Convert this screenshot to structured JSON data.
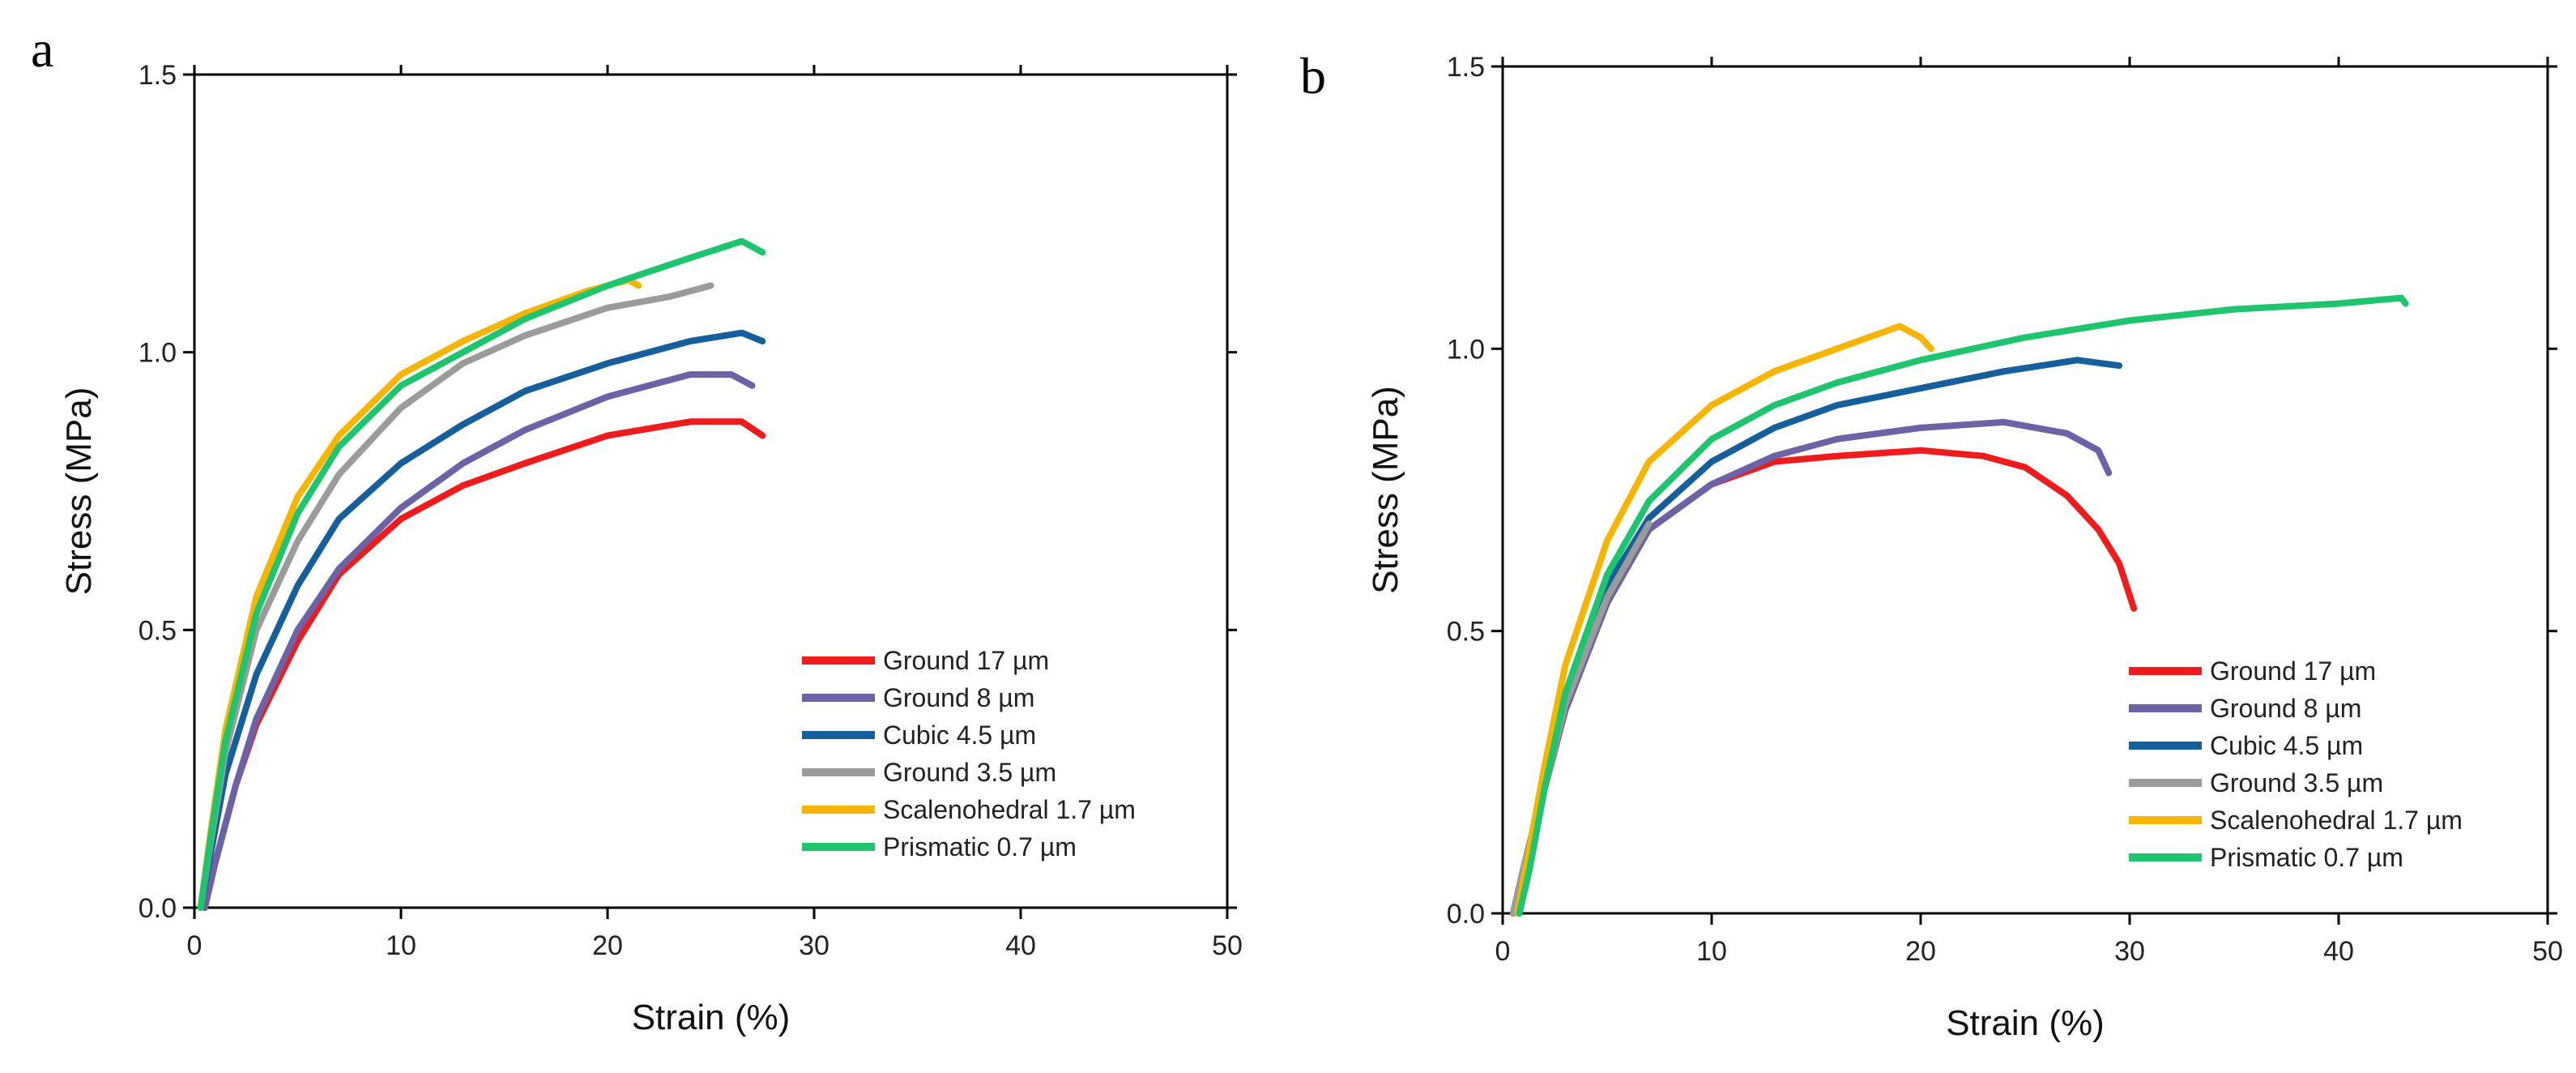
{
  "chart_data": [
    {
      "type": "line",
      "panel_label": "a",
      "xlabel": "Strain (%)",
      "ylabel": "Stress (MPa)",
      "xlim": [
        0,
        50
      ],
      "ylim": [
        0,
        1.5
      ],
      "x_ticks": [
        "0",
        "10",
        "20",
        "30",
        "40",
        "50"
      ],
      "y_ticks": [
        "0.0",
        "0.5",
        "1.0",
        "1.5"
      ],
      "legend_position": "bottom-right",
      "series": [
        {
          "name": "Ground 17 µm",
          "color": "#ee1c1c",
          "points": [
            [
              0.5,
              0
            ],
            [
              1,
              0.08
            ],
            [
              2,
              0.22
            ],
            [
              3,
              0.33
            ],
            [
              5,
              0.48
            ],
            [
              7,
              0.6
            ],
            [
              10,
              0.7
            ],
            [
              13,
              0.76
            ],
            [
              16,
              0.8
            ],
            [
              20,
              0.85
            ],
            [
              24,
              0.875
            ],
            [
              26.5,
              0.875
            ],
            [
              27.5,
              0.85
            ]
          ]
        },
        {
          "name": "Ground 8 µm",
          "color": "#6b63a6",
          "points": [
            [
              0.5,
              0
            ],
            [
              1,
              0.08
            ],
            [
              2,
              0.22
            ],
            [
              3,
              0.34
            ],
            [
              5,
              0.5
            ],
            [
              7,
              0.61
            ],
            [
              10,
              0.72
            ],
            [
              13,
              0.8
            ],
            [
              16,
              0.86
            ],
            [
              20,
              0.92
            ],
            [
              24,
              0.96
            ],
            [
              26,
              0.96
            ],
            [
              27,
              0.94
            ]
          ]
        },
        {
          "name": "Cubic 4.5 µm",
          "color": "#155f9c",
          "points": [
            [
              0.3,
              0
            ],
            [
              0.8,
              0.1
            ],
            [
              1.5,
              0.24
            ],
            [
              3,
              0.42
            ],
            [
              5,
              0.58
            ],
            [
              7,
              0.7
            ],
            [
              10,
              0.8
            ],
            [
              13,
              0.87
            ],
            [
              16,
              0.93
            ],
            [
              20,
              0.98
            ],
            [
              24,
              1.02
            ],
            [
              26.5,
              1.035
            ],
            [
              27.5,
              1.02
            ]
          ]
        },
        {
          "name": "Ground 3.5 µm",
          "color": "#9b9b9b",
          "points": [
            [
              0.3,
              0
            ],
            [
              0.8,
              0.12
            ],
            [
              1.5,
              0.28
            ],
            [
              3,
              0.5
            ],
            [
              5,
              0.66
            ],
            [
              7,
              0.78
            ],
            [
              10,
              0.9
            ],
            [
              13,
              0.98
            ],
            [
              16,
              1.03
            ],
            [
              20,
              1.08
            ],
            [
              23,
              1.1
            ],
            [
              25,
              1.12
            ]
          ]
        },
        {
          "name": "Scalenohedral 1.7 µm",
          "color": "#f7b500",
          "points": [
            [
              0.3,
              0
            ],
            [
              0.8,
              0.14
            ],
            [
              1.5,
              0.32
            ],
            [
              3,
              0.56
            ],
            [
              5,
              0.74
            ],
            [
              7,
              0.85
            ],
            [
              10,
              0.96
            ],
            [
              13,
              1.02
            ],
            [
              16,
              1.07
            ],
            [
              19,
              1.11
            ],
            [
              21,
              1.13
            ],
            [
              21.5,
              1.12
            ]
          ]
        },
        {
          "name": "Prismatic 0.7 µm",
          "color": "#1fc46e",
          "points": [
            [
              0.3,
              0
            ],
            [
              0.8,
              0.13
            ],
            [
              1.5,
              0.3
            ],
            [
              3,
              0.53
            ],
            [
              5,
              0.71
            ],
            [
              7,
              0.83
            ],
            [
              10,
              0.94
            ],
            [
              13,
              1.0
            ],
            [
              16,
              1.06
            ],
            [
              20,
              1.12
            ],
            [
              24,
              1.17
            ],
            [
              26.5,
              1.2
            ],
            [
              27.5,
              1.18
            ]
          ]
        }
      ]
    },
    {
      "type": "line",
      "panel_label": "b",
      "xlabel": "Strain (%)",
      "ylabel": "Stress (MPa)",
      "xlim": [
        0,
        50
      ],
      "ylim": [
        0,
        1.5
      ],
      "x_ticks": [
        "0",
        "10",
        "20",
        "30",
        "40",
        "50"
      ],
      "y_ticks": [
        "0.0",
        "0.5",
        "1.0",
        "1.5"
      ],
      "legend_position": "bottom-right",
      "series": [
        {
          "name": "Ground 17 µm",
          "color": "#ee1c1c",
          "points": [
            [
              0.5,
              0
            ],
            [
              1,
              0.08
            ],
            [
              2,
              0.22
            ],
            [
              3,
              0.36
            ],
            [
              5,
              0.55
            ],
            [
              7,
              0.68
            ],
            [
              10,
              0.76
            ],
            [
              13,
              0.8
            ],
            [
              16,
              0.81
            ],
            [
              20,
              0.82
            ],
            [
              23,
              0.81
            ],
            [
              25,
              0.79
            ],
            [
              27,
              0.74
            ],
            [
              28.5,
              0.68
            ],
            [
              29.5,
              0.62
            ],
            [
              30.2,
              0.54
            ]
          ]
        },
        {
          "name": "Ground 8 µm",
          "color": "#6b63a6",
          "points": [
            [
              0.5,
              0
            ],
            [
              1,
              0.08
            ],
            [
              2,
              0.22
            ],
            [
              3,
              0.36
            ],
            [
              5,
              0.55
            ],
            [
              7,
              0.68
            ],
            [
              10,
              0.76
            ],
            [
              13,
              0.81
            ],
            [
              16,
              0.84
            ],
            [
              20,
              0.86
            ],
            [
              24,
              0.87
            ],
            [
              27,
              0.85
            ],
            [
              28.5,
              0.82
            ],
            [
              29,
              0.78
            ]
          ]
        },
        {
          "name": "Cubic 4.5 µm",
          "color": "#155f9c",
          "points": [
            [
              0.5,
              0
            ],
            [
              1,
              0.08
            ],
            [
              2,
              0.23
            ],
            [
              3,
              0.38
            ],
            [
              5,
              0.58
            ],
            [
              7,
              0.7
            ],
            [
              10,
              0.8
            ],
            [
              13,
              0.86
            ],
            [
              16,
              0.9
            ],
            [
              20,
              0.93
            ],
            [
              24,
              0.96
            ],
            [
              27.5,
              0.98
            ],
            [
              29.5,
              0.97
            ]
          ]
        },
        {
          "name": "Ground 3.5 µm",
          "color": "#9b9b9b",
          "points": [
            [
              0.5,
              0
            ],
            [
              1,
              0.08
            ],
            [
              2,
              0.22
            ],
            [
              3,
              0.37
            ],
            [
              5,
              0.56
            ],
            [
              7,
              0.69
            ]
          ]
        },
        {
          "name": "Scalenohedral 1.7 µm",
          "color": "#f7b500",
          "points": [
            [
              0.7,
              0
            ],
            [
              1.2,
              0.1
            ],
            [
              2,
              0.26
            ],
            [
              3,
              0.44
            ],
            [
              5,
              0.66
            ],
            [
              7,
              0.8
            ],
            [
              10,
              0.9
            ],
            [
              13,
              0.96
            ],
            [
              16,
              1.0
            ],
            [
              19,
              1.04
            ],
            [
              20,
              1.02
            ],
            [
              20.5,
              1.0
            ]
          ]
        },
        {
          "name": "Prismatic 0.7 µm",
          "color": "#1fc46e",
          "points": [
            [
              0.8,
              0
            ],
            [
              1.3,
              0.08
            ],
            [
              2,
              0.22
            ],
            [
              3,
              0.39
            ],
            [
              5,
              0.6
            ],
            [
              7,
              0.73
            ],
            [
              10,
              0.84
            ],
            [
              13,
              0.9
            ],
            [
              16,
              0.94
            ],
            [
              20,
              0.98
            ],
            [
              25,
              1.02
            ],
            [
              30,
              1.05
            ],
            [
              35,
              1.07
            ],
            [
              40,
              1.08
            ],
            [
              43,
              1.09
            ],
            [
              43.2,
              1.08
            ]
          ]
        }
      ]
    }
  ]
}
